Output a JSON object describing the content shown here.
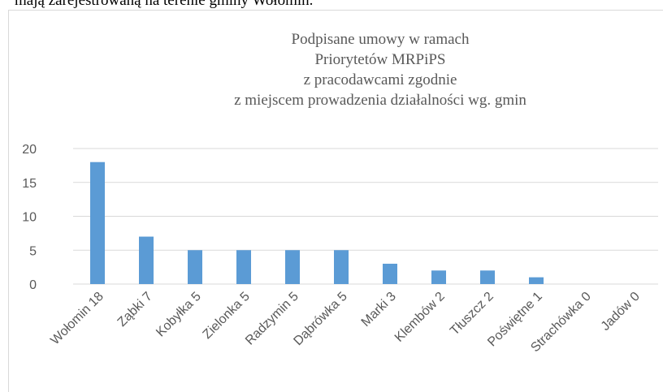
{
  "intro_text": "mają zarejestrowaną na terenie gminy Wołomin.",
  "chart_data": {
    "type": "bar",
    "title": [
      "Podpisane umowy w ramach",
      "Priorytetów MRPiPS",
      "z pracodawcami zgodnie",
      "z miejscem prowadzenia działalności wg. gmin"
    ],
    "categories": [
      "Wołomin 18",
      "Ząbki 7",
      "Kobyłka 5",
      "Zielonka 5",
      "Radzymin 5",
      "Dąbrówka 5",
      "Marki 3",
      "Klembów 2",
      "Tłuszcz 2",
      "Poświętne 1",
      "Strachówka 0",
      "Jadów 0"
    ],
    "values": [
      18,
      7,
      5,
      5,
      5,
      5,
      3,
      2,
      2,
      1,
      0,
      0
    ],
    "color": "#5b9bd5",
    "ylim": [
      0,
      20
    ],
    "yticks": [
      0,
      5,
      10,
      15,
      20
    ],
    "grid": true
  }
}
